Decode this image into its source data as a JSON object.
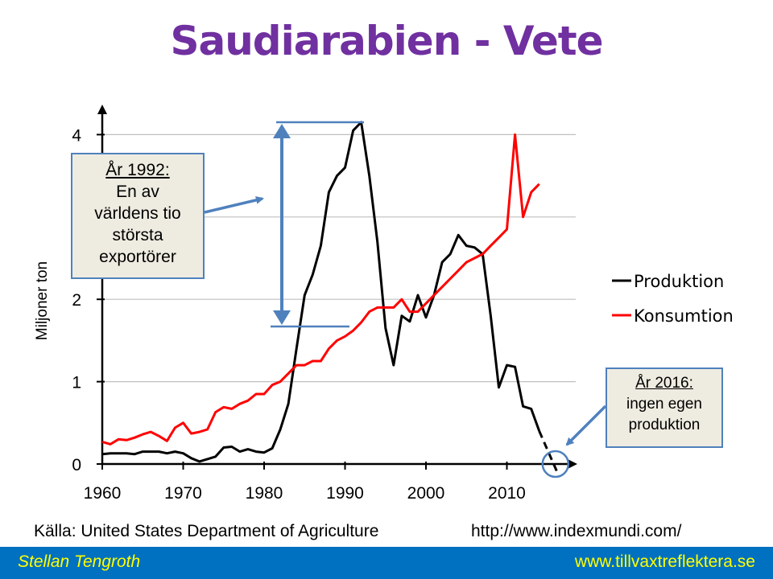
{
  "title": "Saudiarabien - Vete",
  "chart_data": {
    "type": "line",
    "ylabel": "Miljoner ton",
    "xlabel": "",
    "xlim": [
      1960,
      2018
    ],
    "ylim": [
      0,
      4.2
    ],
    "x_ticks": [
      1960,
      1970,
      1980,
      1990,
      2000,
      2010
    ],
    "y_ticks": [
      0,
      1,
      2,
      4
    ],
    "grid": true,
    "legend_position": "right",
    "series": [
      {
        "name": "Produktion",
        "color": "#000000",
        "x": [
          1960,
          1961,
          1962,
          1963,
          1964,
          1965,
          1966,
          1967,
          1968,
          1969,
          1970,
          1971,
          1972,
          1973,
          1974,
          1975,
          1976,
          1977,
          1978,
          1979,
          1980,
          1981,
          1982,
          1983,
          1984,
          1985,
          1986,
          1987,
          1988,
          1989,
          1990,
          1991,
          1992,
          1993,
          1994,
          1995,
          1996,
          1997,
          1998,
          1999,
          2000,
          2001,
          2002,
          2003,
          2004,
          2005,
          2006,
          2007,
          2008,
          2009,
          2010,
          2011,
          2012,
          2013,
          2014
        ],
        "values": [
          0.12,
          0.13,
          0.13,
          0.13,
          0.12,
          0.15,
          0.15,
          0.15,
          0.13,
          0.15,
          0.13,
          0.07,
          0.03,
          0.06,
          0.09,
          0.2,
          0.21,
          0.15,
          0.18,
          0.15,
          0.14,
          0.19,
          0.42,
          0.73,
          1.4,
          2.05,
          2.3,
          2.65,
          3.3,
          3.5,
          3.6,
          4.05,
          4.15,
          3.5,
          2.7,
          1.65,
          1.2,
          1.8,
          1.73,
          2.05,
          1.78,
          2.05,
          2.45,
          2.55,
          2.78,
          2.65,
          2.63,
          2.55,
          1.8,
          0.93,
          1.2,
          1.18,
          0.7,
          0.67,
          0.4
        ]
      },
      {
        "name": "Konsumtion",
        "color": "#ff0000",
        "x": [
          1960,
          1961,
          1962,
          1963,
          1964,
          1965,
          1966,
          1967,
          1968,
          1969,
          1970,
          1971,
          1972,
          1973,
          1974,
          1975,
          1976,
          1977,
          1978,
          1979,
          1980,
          1981,
          1982,
          1983,
          1984,
          1985,
          1986,
          1987,
          1988,
          1989,
          1990,
          1991,
          1992,
          1993,
          1994,
          1995,
          1996,
          1997,
          1998,
          1999,
          2000,
          2001,
          2002,
          2003,
          2004,
          2005,
          2006,
          2007,
          2008,
          2009,
          2010,
          2011,
          2012,
          2013,
          2014
        ],
        "values": [
          0.27,
          0.24,
          0.3,
          0.29,
          0.32,
          0.36,
          0.39,
          0.34,
          0.28,
          0.44,
          0.5,
          0.37,
          0.39,
          0.42,
          0.63,
          0.69,
          0.67,
          0.73,
          0.77,
          0.85,
          0.85,
          0.96,
          1.0,
          1.1,
          1.2,
          1.2,
          1.25,
          1.25,
          1.4,
          1.5,
          1.55,
          1.62,
          1.72,
          1.85,
          1.9,
          1.9,
          1.9,
          2.0,
          1.85,
          1.85,
          1.95,
          2.05,
          2.15,
          2.25,
          2.35,
          2.45,
          2.5,
          2.55,
          2.65,
          2.75,
          2.85,
          4.0,
          3.0,
          3.3,
          3.4
        ]
      }
    ],
    "projection": {
      "series": "Produktion",
      "x": [
        2014,
        2016
      ],
      "values": [
        0.4,
        0.0
      ]
    },
    "range_marker": {
      "from": 1.67,
      "to": 4.15
    }
  },
  "annotations": {
    "note_1992": {
      "head": "År 1992:",
      "lines": [
        "En av",
        "världens tio",
        "största",
        "exportörer"
      ]
    },
    "note_2016": {
      "head": "År 2016:",
      "lines": [
        "ingen egen",
        "produktion"
      ]
    }
  },
  "source": {
    "left": "Källa: United States Department of Agriculture",
    "right": "http://www.indexmundi.com/"
  },
  "footer": {
    "author": "Stellan Tengroth",
    "website": "www.tillvaxtreflektera.se"
  },
  "colors": {
    "title": "#7030a0",
    "annotation_border": "#4f81bd",
    "annotation_fill": "#eeece1",
    "footer_bg": "#0070c0",
    "footer_text": "#ffff00",
    "grid": "#bfbfbf"
  }
}
